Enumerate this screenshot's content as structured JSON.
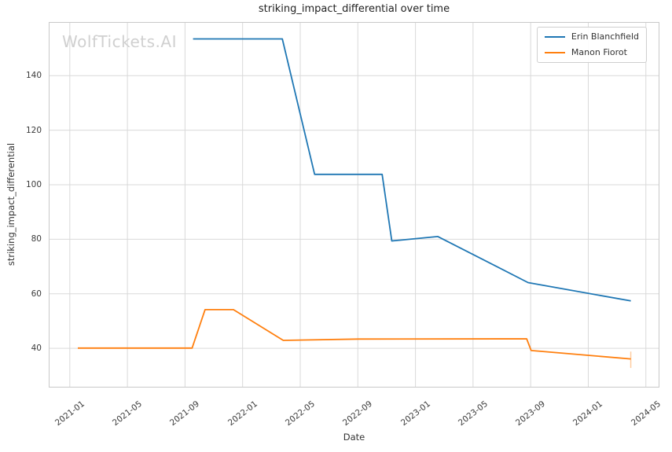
{
  "watermark": {
    "text": "WolfTickets.AI",
    "color": "#d0d0d0"
  },
  "chart_data": {
    "type": "line",
    "title": "striking_impact_differential over time",
    "xlabel": "Date",
    "ylabel": "striking_impact_differential",
    "grid": true,
    "legend_position": "upper right",
    "x_range": [
      "2020-11-19",
      "2024-05-28"
    ],
    "y_range": [
      25.9,
      159.4
    ],
    "x_ticks": [
      "2021-01",
      "2021-05",
      "2021-09",
      "2022-01",
      "2022-05",
      "2022-09",
      "2023-01",
      "2023-05",
      "2023-09",
      "2024-01",
      "2024-05"
    ],
    "y_ticks": [
      40,
      60,
      80,
      100,
      120,
      140
    ],
    "grid_color": "#d9d9d9",
    "tick_rotation_deg": 38,
    "series": [
      {
        "name": "Erin Blanchfield",
        "color": "#1f77b4",
        "points": [
          [
            "2021-09-18",
            153.5
          ],
          [
            "2022-03-24",
            153.5
          ],
          [
            "2022-06-01",
            103.8
          ],
          [
            "2022-10-22",
            103.8
          ],
          [
            "2022-11-12",
            79.4
          ],
          [
            "2023-02-18",
            81.0
          ],
          [
            "2023-08-26",
            64.1
          ],
          [
            "2024-03-30",
            57.4
          ]
        ]
      },
      {
        "name": "Manon Fiorot",
        "color": "#ff7f0e",
        "points": [
          [
            "2021-01-18",
            40.1
          ],
          [
            "2021-09-16",
            40.1
          ],
          [
            "2021-10-13",
            54.2
          ],
          [
            "2021-12-12",
            54.2
          ],
          [
            "2022-03-26",
            42.9
          ],
          [
            "2022-09-03",
            43.4
          ],
          [
            "2023-08-23",
            43.5
          ],
          [
            "2023-09-02",
            39.2
          ],
          [
            "2024-03-30",
            36.1
          ]
        ],
        "error_bar": {
          "date": "2024-03-30",
          "low": 32.8,
          "high": 38.8
        }
      }
    ]
  }
}
